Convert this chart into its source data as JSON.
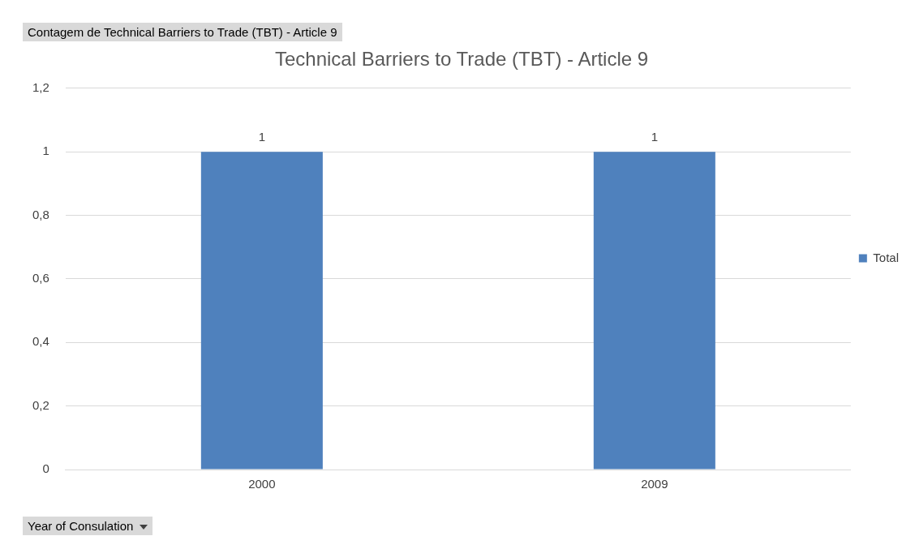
{
  "chart_data": {
    "type": "bar",
    "title": "Technical Barriers to Trade (TBT) - Article 9",
    "categories": [
      "2000",
      "2009"
    ],
    "series": [
      {
        "name": "Total",
        "color": "#4f81bd",
        "values": [
          1,
          1
        ]
      }
    ],
    "ylim": [
      0,
      1.2
    ],
    "yticks": [
      0,
      {
        "value": 0.2,
        "label": "0,2"
      },
      {
        "value": 0.4,
        "label": "0,4"
      },
      {
        "value": 0.6,
        "label": "0,6"
      },
      {
        "value": 0.8,
        "label": "0,8"
      },
      1,
      {
        "value": 1.2,
        "label": "1,2"
      }
    ],
    "grid": "y",
    "legend": "right",
    "data_labels": true,
    "annotations": [
      "Contagem de Technical Barriers to Trade (TBT) - Article 9",
      "Year of Consulation"
    ]
  }
}
